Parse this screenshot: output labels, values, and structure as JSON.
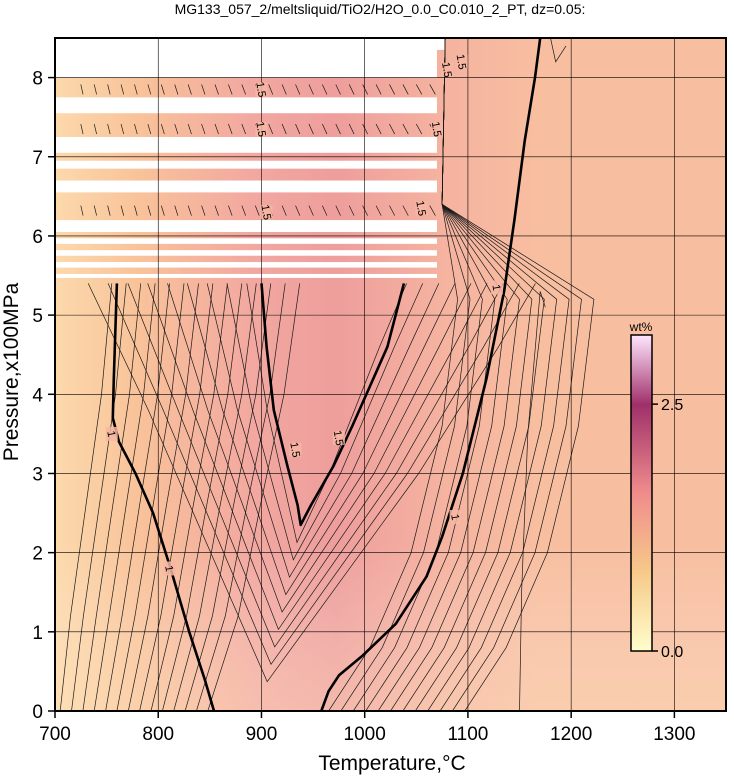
{
  "chart_data": {
    "type": "heatmap",
    "title": "MG133_057_2/meltsliquid/TiO2/H2O_0.0_C0.010_2_PT, dz=0.05:",
    "xlabel": "Temperature,°C",
    "ylabel": "Pressure,x100MPa",
    "xlim": [
      700,
      1350
    ],
    "ylim": [
      0,
      8.5
    ],
    "xticks": [
      "700",
      "800",
      "900",
      "1000",
      "1100",
      "1200",
      "1300"
    ],
    "yticks": [
      "0",
      "1",
      "2",
      "3",
      "4",
      "5",
      "6",
      "7",
      "8"
    ],
    "grid": true,
    "colorbar": {
      "label": "wt%",
      "range": [
        0.0,
        3.2
      ],
      "ticks": [
        "0.0",
        "2.5"
      ],
      "colors": [
        "#fffecc",
        "#f7c98a",
        "#f08c8c",
        "#a0306a",
        "#ffe6ff"
      ]
    },
    "contour_interval": 0.05,
    "bold_contours": [
      {
        "label": "1",
        "points": [
          [
            760,
            5.4
          ],
          [
            757,
            4.2
          ],
          [
            756,
            3.7
          ],
          [
            762,
            3.4
          ],
          [
            778,
            3.0
          ],
          [
            795,
            2.5
          ],
          [
            812,
            1.8
          ],
          [
            830,
            1.0
          ],
          [
            845,
            0.4
          ],
          [
            854,
            0.0
          ]
        ]
      },
      {
        "label": "1.5",
        "points": [
          [
            900,
            5.4
          ],
          [
            905,
            4.6
          ],
          [
            912,
            3.8
          ],
          [
            925,
            3.1
          ],
          [
            935,
            2.6
          ],
          [
            938,
            2.35
          ],
          [
            948,
            2.6
          ],
          [
            970,
            3.1
          ],
          [
            988,
            3.6
          ],
          [
            1005,
            4.1
          ],
          [
            1022,
            4.6
          ],
          [
            1038,
            5.4
          ]
        ]
      },
      {
        "label": "1",
        "points": [
          [
            958,
            0.0
          ],
          [
            965,
            0.25
          ],
          [
            975,
            0.45
          ],
          [
            998,
            0.7
          ],
          [
            1030,
            1.1
          ],
          [
            1060,
            1.7
          ],
          [
            1075,
            2.2
          ],
          [
            1095,
            3.0
          ],
          [
            1118,
            4.2
          ],
          [
            1135,
            5.3
          ],
          [
            1145,
            6.2
          ],
          [
            1155,
            7.2
          ],
          [
            1165,
            8.0
          ],
          [
            1170,
            8.5
          ]
        ]
      }
    ],
    "contour_labels": [
      {
        "text": "1",
        "x": 755,
        "y": 3.5
      },
      {
        "text": "1",
        "x": 811,
        "y": 1.8
      },
      {
        "text": "1.5",
        "x": 933,
        "y": 3.3
      },
      {
        "text": "1.5",
        "x": 975,
        "y": 3.45
      },
      {
        "text": "1",
        "x": 1088,
        "y": 2.45
      },
      {
        "text": "1",
        "x": 1128,
        "y": 5.35
      },
      {
        "text": "1.5",
        "x": 900,
        "y": 7.85
      },
      {
        "text": "1.5",
        "x": 900,
        "y": 7.35
      },
      {
        "text": "1.5",
        "x": 905,
        "y": 6.3
      },
      {
        "text": "1.5",
        "x": 1070,
        "y": 7.35
      },
      {
        "text": "1.5",
        "x": 1080,
        "y": 8.1
      },
      {
        "text": "1.5",
        "x": 1094,
        "y": 8.2
      },
      {
        "text": "1.5",
        "x": 1055,
        "y": 6.35
      }
    ],
    "missing_data_bands": [
      [
        8.0,
        8.5
      ],
      [
        7.55,
        7.75
      ],
      [
        7.05,
        7.25
      ],
      [
        6.85,
        6.95
      ],
      [
        6.55,
        6.7
      ],
      [
        6.05,
        6.2
      ],
      [
        5.9,
        5.97
      ],
      [
        5.75,
        5.82
      ],
      [
        5.6,
        5.67
      ],
      [
        5.47,
        5.52
      ]
    ]
  }
}
